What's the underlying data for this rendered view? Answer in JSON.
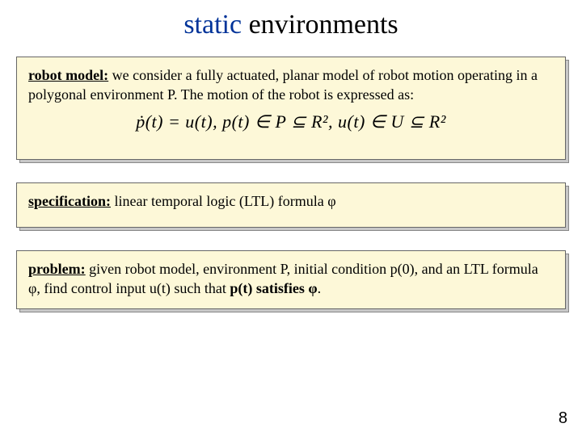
{
  "title": {
    "word1": "static",
    "word2": "environments",
    "color_word1": "#003399",
    "color_word2": "#000000",
    "fontsize": 34
  },
  "boxes": {
    "background_color": "#fdf8d8",
    "border_color": "#666666",
    "shadow_color": "#c8c8c8",
    "fontsize": 18,
    "robot_model": {
      "lead": "robot model:",
      "text": " we consider a fully actuated, planar model of robot motion operating in a polygonal environment P.  The motion of the robot is expressed as:",
      "equation": "ṗ(t) = u(t), p(t) ∈ P ⊆ R², u(t) ∈ U ⊆ R²"
    },
    "specification": {
      "lead": "specification:",
      "text": " linear temporal logic (LTL) formula φ"
    },
    "problem": {
      "lead": "problem:",
      "text_part1": " given robot model, environment P, initial condition p(0), and an LTL formula φ, find control input u(t) such that ",
      "bold_tail": "p(t) satisfies φ",
      "tail_punct": "."
    }
  },
  "page_number": "8"
}
